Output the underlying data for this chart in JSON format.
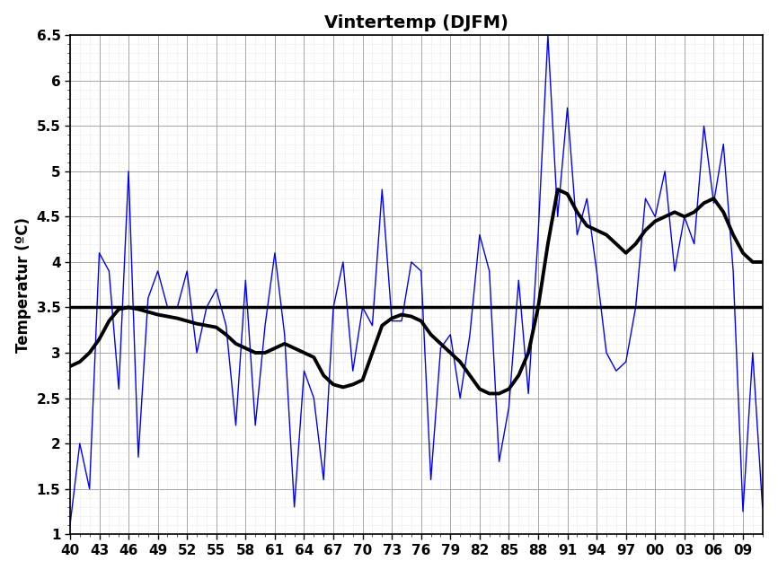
{
  "title": "Vintertemp (DJFM)",
  "ylabel": "Temperatur (ºC)",
  "xlim_min": 40,
  "xlim_max": 111,
  "ylim": [
    1.0,
    6.5
  ],
  "xtick_vals": [
    40,
    43,
    46,
    49,
    52,
    55,
    58,
    61,
    64,
    67,
    70,
    73,
    76,
    79,
    82,
    85,
    88,
    91,
    94,
    97,
    100,
    103,
    106,
    109
  ],
  "xtick_labels": [
    "40",
    "43",
    "46",
    "49",
    "52",
    "55",
    "58",
    "61",
    "64",
    "67",
    "70",
    "73",
    "76",
    "79",
    "82",
    "85",
    "88",
    "91",
    "94",
    "97",
    "00",
    "03",
    "06",
    "09"
  ],
  "yticks": [
    1.0,
    1.5,
    2.0,
    2.5,
    3.0,
    3.5,
    4.0,
    4.5,
    5.0,
    5.5,
    6.0,
    6.5
  ],
  "mean_line": 3.5,
  "blue_line_color": "#0000ff",
  "smooth_line_color": "#000000",
  "mean_line_color": "#000000",
  "background_color": "#ffffff",
  "grid_major_color": "#999999",
  "grid_minor_color": "#cccccc",
  "years_x": [
    40,
    41,
    42,
    43,
    44,
    45,
    46,
    47,
    48,
    49,
    50,
    51,
    52,
    53,
    54,
    55,
    56,
    57,
    58,
    59,
    60,
    61,
    62,
    63,
    64,
    65,
    66,
    67,
    68,
    69,
    70,
    71,
    72,
    73,
    74,
    75,
    76,
    77,
    78,
    79,
    80,
    81,
    82,
    83,
    84,
    85,
    86,
    87,
    88,
    89,
    90,
    91,
    92,
    93,
    94,
    95,
    96,
    97,
    98,
    99,
    100,
    101,
    102,
    103,
    104,
    105,
    106,
    107,
    108,
    109,
    110,
    111
  ],
  "annual_temps": [
    1.1,
    2.0,
    1.5,
    4.1,
    3.9,
    2.6,
    5.0,
    1.85,
    3.6,
    3.9,
    3.5,
    3.5,
    3.9,
    3.0,
    3.5,
    3.7,
    3.3,
    2.2,
    3.8,
    2.2,
    3.3,
    4.1,
    3.2,
    1.3,
    2.8,
    2.5,
    1.6,
    3.5,
    4.0,
    2.8,
    3.5,
    3.3,
    4.8,
    3.35,
    3.35,
    4.0,
    3.9,
    1.6,
    3.05,
    3.2,
    2.5,
    3.2,
    4.3,
    3.9,
    1.8,
    2.4,
    3.8,
    2.55,
    4.3,
    6.5,
    4.5,
    5.7,
    4.3,
    4.7,
    3.9,
    3.0,
    2.8,
    2.9,
    3.5,
    4.7,
    4.5,
    5.0,
    3.9,
    4.5,
    4.2,
    5.5,
    4.65,
    5.3,
    3.9,
    1.25,
    3.0,
    1.3
  ],
  "smooth_temps": [
    2.85,
    2.9,
    3.0,
    3.15,
    3.35,
    3.48,
    3.5,
    3.48,
    3.45,
    3.42,
    3.4,
    3.38,
    3.35,
    3.32,
    3.3,
    3.28,
    3.2,
    3.1,
    3.05,
    3.0,
    3.0,
    3.05,
    3.1,
    3.05,
    3.0,
    2.95,
    2.75,
    2.65,
    2.62,
    2.65,
    2.7,
    3.0,
    3.3,
    3.38,
    3.42,
    3.4,
    3.35,
    3.2,
    3.1,
    3.0,
    2.9,
    2.75,
    2.6,
    2.55,
    2.55,
    2.6,
    2.75,
    3.0,
    3.5,
    4.2,
    4.8,
    4.75,
    4.55,
    4.4,
    4.35,
    4.3,
    4.2,
    4.1,
    4.2,
    4.35,
    4.45,
    4.5,
    4.55,
    4.5,
    4.55,
    4.65,
    4.7,
    4.55,
    4.3,
    4.1,
    4.0,
    4.0
  ]
}
